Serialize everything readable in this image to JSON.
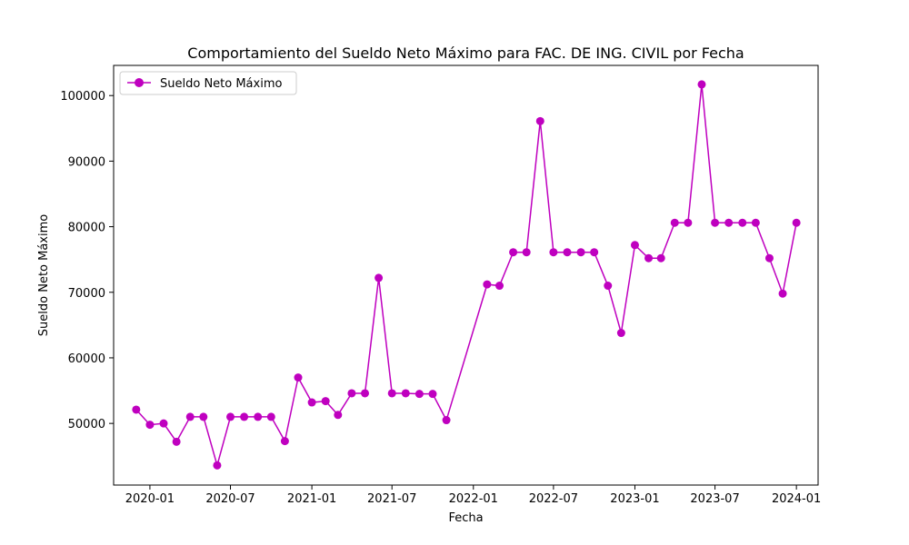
{
  "chart_data": {
    "type": "line",
    "title": "Comportamiento del Sueldo Neto Máximo para FAC. DE ING. CIVIL por Fecha",
    "xlabel": "Fecha",
    "ylabel": "Sueldo Neto Máximo",
    "color": "#bf00bf",
    "legend_position": "upper-left",
    "grid": false,
    "xlim": [
      "2019-10-11",
      "2024-02-19"
    ],
    "ylim": [
      40600,
      104600
    ],
    "x_ticks": [
      "2020-01",
      "2020-07",
      "2021-01",
      "2021-07",
      "2022-01",
      "2022-07",
      "2023-01",
      "2023-07",
      "2024-01"
    ],
    "y_ticks": [
      50000,
      60000,
      70000,
      80000,
      90000,
      100000
    ],
    "series": [
      {
        "name": "Sueldo Neto Máximo",
        "x": [
          "2019-12-01",
          "2020-01-01",
          "2020-02-01",
          "2020-03-01",
          "2020-04-01",
          "2020-05-01",
          "2020-06-01",
          "2020-07-01",
          "2020-08-01",
          "2020-09-01",
          "2020-10-01",
          "2020-11-01",
          "2020-12-01",
          "2021-01-01",
          "2021-02-01",
          "2021-03-01",
          "2021-04-01",
          "2021-05-01",
          "2021-06-01",
          "2021-07-01",
          "2021-08-01",
          "2021-09-01",
          "2021-10-01",
          "2021-11-01",
          "2022-02-01",
          "2022-03-01",
          "2022-04-01",
          "2022-05-01",
          "2022-06-01",
          "2022-07-01",
          "2022-08-01",
          "2022-09-01",
          "2022-10-01",
          "2022-11-01",
          "2022-12-01",
          "2023-01-01",
          "2023-02-01",
          "2023-03-01",
          "2023-04-01",
          "2023-05-01",
          "2023-06-01",
          "2023-07-01",
          "2023-08-01",
          "2023-09-01",
          "2023-10-01",
          "2023-11-01",
          "2023-12-01",
          "2024-01-01"
        ],
        "y": [
          52100,
          49800,
          50000,
          47200,
          51000,
          51000,
          43600,
          51000,
          51000,
          51000,
          51000,
          47300,
          57000,
          53200,
          53400,
          51300,
          54600,
          54600,
          72200,
          54600,
          54600,
          54500,
          54500,
          50500,
          71200,
          71000,
          76100,
          76100,
          96100,
          76100,
          76100,
          76100,
          76100,
          71000,
          63800,
          77200,
          75200,
          75200,
          80600,
          80600,
          101700,
          80600,
          80600,
          80600,
          80600,
          75200,
          69800,
          80600
        ]
      }
    ]
  }
}
